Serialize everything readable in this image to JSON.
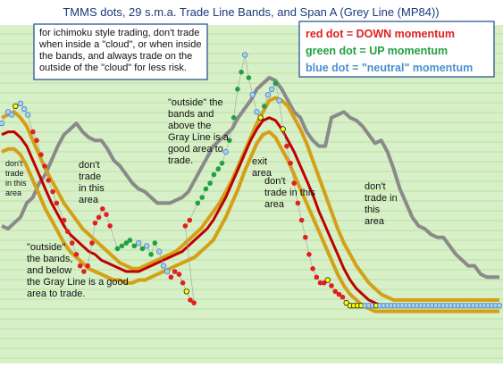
{
  "chart_data": {
    "type": "line",
    "title": "TMMS dots, 29 s.m.a. Trade Line Bands, and Span A (Grey Line (MP84))",
    "grid": true,
    "legend": [
      {
        "label": "red dot = DOWN momentum",
        "color": "#e02020"
      },
      {
        "label": "green dot = UP momentum",
        "color": "#20a040"
      },
      {
        "label": "blue dot = \"neutral\" momentum",
        "color": "#4a90d0"
      }
    ],
    "colors": {
      "background": "#d8f0c8",
      "gridline": "#b8e0a0",
      "upper_band": "#d4a017",
      "lower_band": "#d4a017",
      "trade_line": "#c00000",
      "span_a": "#8a8a8a",
      "dot_red": "#e02020",
      "dot_green": "#20a040",
      "dot_blue": "#a8d0f0",
      "dot_yellow": "#ffff00",
      "note_border": "#1a4a8a"
    },
    "x": [
      0,
      1,
      2,
      3,
      4,
      5,
      6,
      7,
      8,
      9,
      10,
      11,
      12,
      13,
      14,
      15,
      16,
      17,
      18,
      19,
      20,
      21,
      22,
      23,
      24,
      25,
      26,
      27,
      28,
      29,
      30,
      31,
      32,
      33,
      34,
      35,
      36,
      37,
      38,
      39,
      40,
      41,
      42,
      43,
      44,
      45,
      46,
      47,
      48,
      49,
      50,
      51,
      52,
      53,
      54,
      55,
      56,
      57,
      58,
      59,
      60,
      61,
      62,
      63,
      64,
      65,
      66,
      67,
      68,
      69,
      70,
      71,
      72,
      73,
      74,
      75,
      76,
      77,
      78,
      79,
      80
    ],
    "ylim": [
      0,
      100
    ],
    "series": [
      {
        "key": "span_a",
        "values": [
          32,
          31,
          33,
          35,
          40,
          42,
          47,
          50,
          55,
          60,
          64,
          66,
          68,
          65,
          63,
          62,
          62,
          59,
          55,
          53,
          50,
          47,
          45,
          44,
          42,
          40,
          40,
          40,
          41,
          42,
          44,
          48,
          52,
          56,
          60,
          62,
          64,
          66,
          70,
          73,
          76,
          80,
          82,
          84,
          83,
          80,
          76,
          72,
          70,
          65,
          62,
          60,
          60,
          70,
          71,
          72,
          70,
          69,
          67,
          64,
          61,
          62,
          58,
          52,
          45,
          40,
          35,
          32,
          31,
          29,
          28,
          28,
          25,
          22,
          20,
          18,
          18,
          15,
          14,
          14,
          14
        ]
      },
      {
        "key": "upper_band",
        "values": [
          70,
          71,
          72,
          70,
          67,
          62,
          57,
          52,
          48,
          44,
          40,
          37,
          34,
          31,
          29,
          27,
          25,
          23,
          21,
          19,
          18,
          17,
          17,
          18,
          19,
          20,
          21,
          22,
          23,
          25,
          27,
          29,
          31,
          34,
          37,
          40,
          44,
          48,
          53,
          58,
          63,
          68,
          72,
          76,
          77,
          76,
          74,
          70,
          66,
          61,
          55,
          49,
          43,
          37,
          31,
          26,
          22,
          18,
          15,
          12,
          10,
          8,
          7,
          6,
          6,
          6,
          6,
          6,
          6,
          6,
          6,
          6,
          6,
          6,
          6,
          6,
          6,
          6,
          6,
          6,
          6
        ]
      },
      {
        "key": "trade_line",
        "values": [
          64,
          65,
          65,
          63,
          60,
          55,
          50,
          45,
          40,
          36,
          32,
          29,
          27,
          25,
          23,
          22,
          20,
          19,
          18,
          17,
          16,
          16,
          16,
          17,
          18,
          19,
          20,
          21,
          22,
          23,
          25,
          27,
          29,
          31,
          34,
          38,
          42,
          47,
          52,
          57,
          62,
          66,
          69,
          70,
          69,
          66,
          62,
          58,
          53,
          48,
          43,
          37,
          32,
          27,
          22,
          17,
          13,
          10,
          8,
          6,
          5,
          4,
          4,
          4,
          4,
          4,
          4,
          4,
          4,
          4,
          4,
          4,
          4,
          4,
          4,
          4,
          4,
          4,
          4,
          4,
          4
        ]
      },
      {
        "key": "lower_band",
        "values": [
          58,
          59,
          59,
          57,
          53,
          48,
          43,
          38,
          34,
          30,
          26,
          23,
          21,
          19,
          17,
          16,
          15,
          14,
          13,
          13,
          12,
          12,
          13,
          13,
          14,
          15,
          16,
          17,
          18,
          19,
          20,
          21,
          23,
          25,
          27,
          31,
          35,
          40,
          45,
          51,
          56,
          61,
          64,
          65,
          63,
          59,
          55,
          50,
          45,
          40,
          35,
          30,
          25,
          20,
          15,
          11,
          8,
          6,
          4,
          3,
          2,
          2,
          2,
          2,
          2,
          2,
          2,
          2,
          2,
          2,
          2,
          2,
          2,
          2,
          2,
          2,
          2,
          2,
          2,
          2,
          2
        ]
      }
    ],
    "dots": [
      {
        "x": 0,
        "y": 68,
        "c": "b"
      },
      {
        "x": 1,
        "y": 72,
        "c": "b"
      },
      {
        "x": 1.6,
        "y": 71,
        "c": "b"
      },
      {
        "x": 2.2,
        "y": 74,
        "c": "y"
      },
      {
        "x": 3,
        "y": 75,
        "c": "b"
      },
      {
        "x": 3.6,
        "y": 73,
        "c": "b"
      },
      {
        "x": 4.2,
        "y": 71,
        "c": "b"
      },
      {
        "x": 5,
        "y": 65,
        "c": "r"
      },
      {
        "x": 5.6,
        "y": 62,
        "c": "r"
      },
      {
        "x": 6.3,
        "y": 57,
        "c": "r"
      },
      {
        "x": 6.9,
        "y": 53,
        "c": "r"
      },
      {
        "x": 7.5,
        "y": 48,
        "c": "r"
      },
      {
        "x": 8.2,
        "y": 44,
        "c": "r"
      },
      {
        "x": 8.8,
        "y": 40,
        "c": "r"
      },
      {
        "x": 10,
        "y": 34,
        "c": "r"
      },
      {
        "x": 10.6,
        "y": 30,
        "c": "r"
      },
      {
        "x": 11.3,
        "y": 26,
        "c": "r"
      },
      {
        "x": 12,
        "y": 22,
        "c": "r"
      },
      {
        "x": 12.6,
        "y": 18,
        "c": "r"
      },
      {
        "x": 13.2,
        "y": 16,
        "c": "r"
      },
      {
        "x": 13.8,
        "y": 18,
        "c": "r"
      },
      {
        "x": 14.5,
        "y": 26,
        "c": "r"
      },
      {
        "x": 15,
        "y": 33,
        "c": "r"
      },
      {
        "x": 15.6,
        "y": 35,
        "c": "r"
      },
      {
        "x": 16.2,
        "y": 38,
        "c": "r"
      },
      {
        "x": 16.8,
        "y": 36,
        "c": "r"
      },
      {
        "x": 17.4,
        "y": 32,
        "c": "r"
      },
      {
        "x": 18.6,
        "y": 24,
        "c": "g"
      },
      {
        "x": 19.3,
        "y": 25,
        "c": "g"
      },
      {
        "x": 20,
        "y": 26,
        "c": "g"
      },
      {
        "x": 20.6,
        "y": 27,
        "c": "g"
      },
      {
        "x": 21.3,
        "y": 25,
        "c": "g"
      },
      {
        "x": 22,
        "y": 26,
        "c": "b"
      },
      {
        "x": 22.6,
        "y": 24,
        "c": "g"
      },
      {
        "x": 23.3,
        "y": 25,
        "c": "b"
      },
      {
        "x": 24,
        "y": 22,
        "c": "g"
      },
      {
        "x": 24.6,
        "y": 26,
        "c": "g"
      },
      {
        "x": 25.3,
        "y": 23,
        "c": "b"
      },
      {
        "x": 26,
        "y": 18,
        "c": "b"
      },
      {
        "x": 26.6,
        "y": 16,
        "c": "b"
      },
      {
        "x": 27.2,
        "y": 14,
        "c": "r"
      },
      {
        "x": 27.8,
        "y": 16,
        "c": "r"
      },
      {
        "x": 28.5,
        "y": 15,
        "c": "r"
      },
      {
        "x": 29.1,
        "y": 12,
        "c": "r"
      },
      {
        "x": 29.7,
        "y": 9,
        "c": "y"
      },
      {
        "x": 30.3,
        "y": 6,
        "c": "r"
      },
      {
        "x": 30.9,
        "y": 5,
        "c": "r"
      },
      {
        "x": 29.5,
        "y": 32,
        "c": "r"
      },
      {
        "x": 30.2,
        "y": 34,
        "c": "r"
      },
      {
        "x": 31.5,
        "y": 40,
        "c": "g"
      },
      {
        "x": 32.2,
        "y": 42,
        "c": "g"
      },
      {
        "x": 32.8,
        "y": 45,
        "c": "g"
      },
      {
        "x": 33.5,
        "y": 47,
        "c": "g"
      },
      {
        "x": 34.1,
        "y": 50,
        "c": "g"
      },
      {
        "x": 34.8,
        "y": 52,
        "c": "g"
      },
      {
        "x": 35.4,
        "y": 54,
        "c": "g"
      },
      {
        "x": 36,
        "y": 58,
        "c": "b"
      },
      {
        "x": 36.6,
        "y": 62,
        "c": "g"
      },
      {
        "x": 37.3,
        "y": 70,
        "c": "g"
      },
      {
        "x": 37.9,
        "y": 80,
        "c": "g"
      },
      {
        "x": 38.5,
        "y": 86,
        "c": "g"
      },
      {
        "x": 39.1,
        "y": 92,
        "c": "b"
      },
      {
        "x": 39.7,
        "y": 84,
        "c": "g"
      },
      {
        "x": 40.3,
        "y": 78,
        "c": "b"
      },
      {
        "x": 41,
        "y": 72,
        "c": "b"
      },
      {
        "x": 41.6,
        "y": 70,
        "c": "y"
      },
      {
        "x": 42.2,
        "y": 74,
        "c": "g"
      },
      {
        "x": 42.8,
        "y": 78,
        "c": "b"
      },
      {
        "x": 43.4,
        "y": 80,
        "c": "b"
      },
      {
        "x": 44,
        "y": 82,
        "c": "g"
      },
      {
        "x": 44.6,
        "y": 76,
        "c": "b"
      },
      {
        "x": 45.2,
        "y": 66,
        "c": "y"
      },
      {
        "x": 45.8,
        "y": 60,
        "c": "r"
      },
      {
        "x": 46.4,
        "y": 54,
        "c": "r"
      },
      {
        "x": 47,
        "y": 47,
        "c": "r"
      },
      {
        "x": 47.6,
        "y": 40,
        "c": "r"
      },
      {
        "x": 48.2,
        "y": 34,
        "c": "r"
      },
      {
        "x": 48.8,
        "y": 28,
        "c": "r"
      },
      {
        "x": 49.4,
        "y": 22,
        "c": "r"
      },
      {
        "x": 50,
        "y": 17,
        "c": "r"
      },
      {
        "x": 50.6,
        "y": 14,
        "c": "r"
      },
      {
        "x": 51.2,
        "y": 12,
        "c": "r"
      },
      {
        "x": 51.8,
        "y": 12,
        "c": "r"
      },
      {
        "x": 52.4,
        "y": 13,
        "c": "y"
      },
      {
        "x": 53,
        "y": 11,
        "c": "r"
      },
      {
        "x": 53.6,
        "y": 9,
        "c": "r"
      },
      {
        "x": 54.2,
        "y": 8,
        "c": "r"
      },
      {
        "x": 54.8,
        "y": 7,
        "c": "r"
      },
      {
        "x": 55.4,
        "y": 5,
        "c": "y"
      },
      {
        "x": 56,
        "y": 4,
        "c": "y"
      },
      {
        "x": 56.6,
        "y": 4,
        "c": "y"
      },
      {
        "x": 57.2,
        "y": 4,
        "c": "y"
      },
      {
        "x": 57.8,
        "y": 4,
        "c": "y"
      },
      {
        "x": 58.4,
        "y": 4,
        "c": "b"
      },
      {
        "x": 59,
        "y": 4,
        "c": "b"
      },
      {
        "x": 59.6,
        "y": 4,
        "c": "b"
      },
      {
        "x": 60.2,
        "y": 4,
        "c": "y"
      },
      {
        "x": 60.8,
        "y": 4,
        "c": "b"
      },
      {
        "x": 61.4,
        "y": 4,
        "c": "b"
      },
      {
        "x": 62,
        "y": 4,
        "c": "b"
      },
      {
        "x": 62.6,
        "y": 4,
        "c": "b"
      },
      {
        "x": 63.2,
        "y": 4,
        "c": "b"
      },
      {
        "x": 63.8,
        "y": 4,
        "c": "b"
      },
      {
        "x": 64.4,
        "y": 4,
        "c": "b"
      },
      {
        "x": 65,
        "y": 4,
        "c": "b"
      },
      {
        "x": 65.6,
        "y": 4,
        "c": "b"
      },
      {
        "x": 66.2,
        "y": 4,
        "c": "b"
      },
      {
        "x": 66.8,
        "y": 4,
        "c": "b"
      },
      {
        "x": 67.4,
        "y": 4,
        "c": "b"
      },
      {
        "x": 68,
        "y": 4,
        "c": "b"
      },
      {
        "x": 68.6,
        "y": 4,
        "c": "b"
      },
      {
        "x": 69.2,
        "y": 4,
        "c": "b"
      },
      {
        "x": 69.8,
        "y": 4,
        "c": "b"
      },
      {
        "x": 70.4,
        "y": 4,
        "c": "b"
      },
      {
        "x": 71,
        "y": 4,
        "c": "b"
      },
      {
        "x": 71.6,
        "y": 4,
        "c": "b"
      },
      {
        "x": 72.2,
        "y": 4,
        "c": "b"
      },
      {
        "x": 72.8,
        "y": 4,
        "c": "b"
      },
      {
        "x": 73.4,
        "y": 4,
        "c": "b"
      },
      {
        "x": 74,
        "y": 4,
        "c": "b"
      },
      {
        "x": 74.6,
        "y": 4,
        "c": "b"
      },
      {
        "x": 75.2,
        "y": 4,
        "c": "b"
      },
      {
        "x": 75.8,
        "y": 4,
        "c": "b"
      },
      {
        "x": 76.4,
        "y": 4,
        "c": "b"
      },
      {
        "x": 77,
        "y": 4,
        "c": "b"
      },
      {
        "x": 77.6,
        "y": 4,
        "c": "b"
      },
      {
        "x": 78.2,
        "y": 4,
        "c": "b"
      },
      {
        "x": 78.8,
        "y": 4,
        "c": "b"
      },
      {
        "x": 79.4,
        "y": 4,
        "c": "b"
      },
      {
        "x": 80,
        "y": 4,
        "c": "b"
      }
    ],
    "annotations": [
      {
        "lines": [
          "for ichimoku style trading, don't trade",
          "when inside a \"cloud\", or when inside",
          "the bands,  and always trade on the",
          "outside of the \"cloud\" for less risk."
        ],
        "boxed": true,
        "size": 11
      },
      {
        "lines": [
          "don't",
          "trade",
          "in this",
          "area"
        ],
        "size": 9
      },
      {
        "lines": [
          "don't",
          "trade",
          "in this",
          "area"
        ],
        "size": 11
      },
      {
        "lines": [
          "\"outside\" the",
          "bands and",
          "above the",
          "Gray Line is a",
          "good area to",
          "trade."
        ],
        "size": 11
      },
      {
        "lines": [
          "exit",
          "area"
        ],
        "size": 11
      },
      {
        "lines": [
          "don't",
          "trade in this",
          "area"
        ],
        "size": 11
      },
      {
        "lines": [
          "don't",
          "trade in",
          "this",
          "area"
        ],
        "size": 11
      },
      {
        "lines": [
          "\"outside\"",
          "the bands,",
          "and below",
          "the Gray Line is a good",
          "area to trade."
        ],
        "size": 11
      }
    ]
  }
}
